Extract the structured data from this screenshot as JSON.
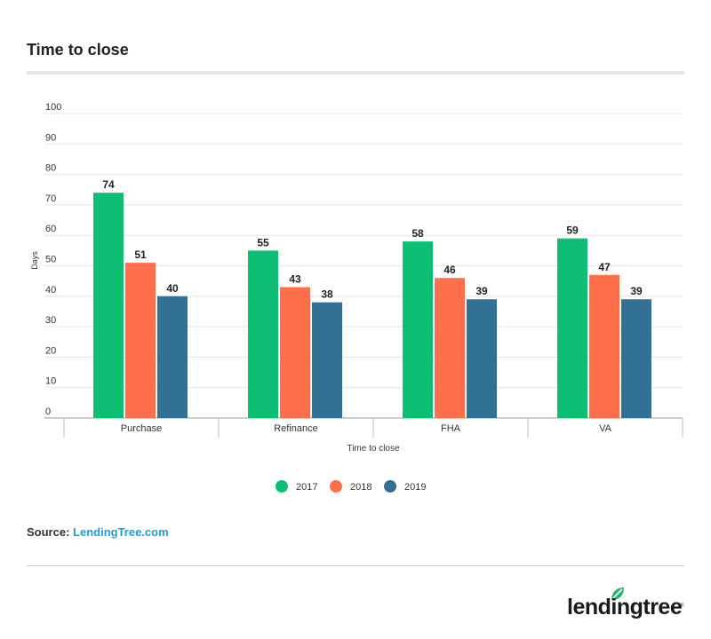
{
  "page": {
    "title": "Time to close",
    "source_label": "Source:",
    "source_link": "LendingTree.com",
    "logo_text": "lendingtree",
    "logo_mark": "®"
  },
  "colors": {
    "s2017": "#0dbf72",
    "s2018": "#ff6f4b",
    "s2019": "#337194",
    "grid": "#e3e3e3",
    "axis": "#bdbdbd",
    "text": "#333333",
    "brand_green": "#1fb86a"
  },
  "chart_data": {
    "type": "bar",
    "title": "Time to close",
    "xlabel": "Time to close",
    "ylabel": "Days",
    "ylim": [
      0,
      100
    ],
    "yticks": [
      0,
      10,
      20,
      30,
      40,
      50,
      60,
      70,
      80,
      90,
      100
    ],
    "categories": [
      "Purchase",
      "Refinance",
      "FHA",
      "VA"
    ],
    "series": [
      {
        "name": "2017",
        "values": [
          74,
          55,
          58,
          59
        ]
      },
      {
        "name": "2018",
        "values": [
          51,
          43,
          46,
          47
        ]
      },
      {
        "name": "2019",
        "values": [
          40,
          38,
          39,
          39
        ]
      }
    ],
    "legend_position": "bottom-center",
    "grid": true
  }
}
